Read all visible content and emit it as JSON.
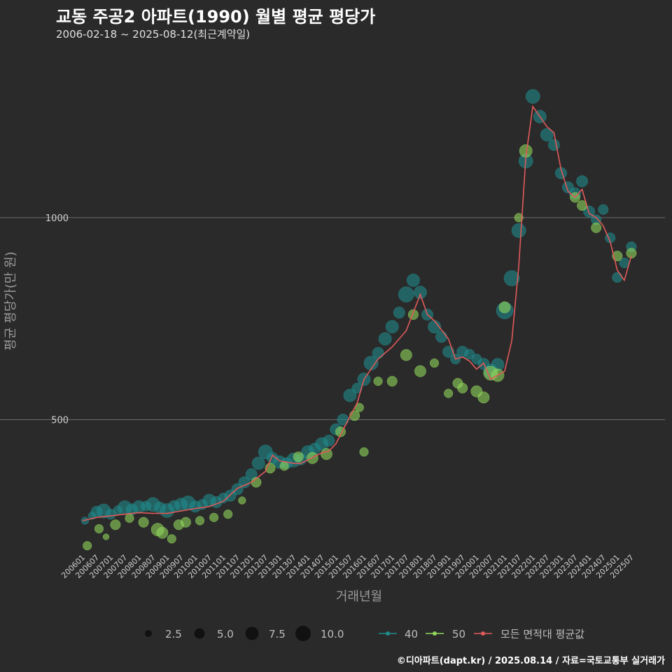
{
  "chart_data": {
    "type": "scatter",
    "title": "교동 주공2 아파트(1990) 월별 평균 평당가",
    "subtitle": "2006-02-18 ~ 2025-08-12(최근계약일)",
    "xlabel": "거래년월",
    "ylabel": "평균 평당가(만 원)",
    "caption": "©디아파트(dapt.kr) / 2025.08.14 / 자료=국토교통부 실거래가",
    "x_range": [
      "200601",
      "202510"
    ],
    "ylim": [
      170,
      1400
    ],
    "y_ticks": [
      500,
      1000
    ],
    "y_tick_labels": [
      "500",
      "1000"
    ],
    "x_tick_labels": [
      "200601",
      "200607",
      "200701",
      "200707",
      "200801",
      "200807",
      "200901",
      "200907",
      "201001",
      "201007",
      "201101",
      "201107",
      "201201",
      "201207",
      "201301",
      "201307",
      "201401",
      "201407",
      "201501",
      "201507",
      "201601",
      "201607",
      "201701",
      "201707",
      "201801",
      "201807",
      "201901",
      "201907",
      "202001",
      "202007",
      "202101",
      "202107",
      "202201",
      "202207",
      "202301",
      "202307",
      "202401",
      "202407",
      "202501",
      "202507"
    ],
    "size_legend": {
      "values": [
        2.5,
        5.0,
        7.5,
        10.0
      ],
      "labels": [
        "2.5",
        "5.0",
        "7.5",
        "10.0"
      ]
    },
    "colors": {
      "s40": "#1f8a8a",
      "s50": "#8fd65a",
      "avg": "#e05a5a",
      "grid": "#6a6a6a",
      "bg": "#2b2a2b"
    },
    "series": [
      {
        "name": "40",
        "points": [
          [
            "200602",
            250,
            3
          ],
          [
            "200605",
            262,
            3
          ],
          [
            "200607",
            272,
            6
          ],
          [
            "200610",
            274,
            8
          ],
          [
            "200701",
            266,
            5
          ],
          [
            "200704",
            276,
            4
          ],
          [
            "200707",
            282,
            8
          ],
          [
            "200710",
            278,
            6
          ],
          [
            "200801",
            284,
            7
          ],
          [
            "200804",
            286,
            5
          ],
          [
            "200807",
            290,
            8
          ],
          [
            "200810",
            282,
            6
          ],
          [
            "200901",
            275,
            8
          ],
          [
            "200904",
            286,
            6
          ],
          [
            "200907",
            290,
            7
          ],
          [
            "200910",
            294,
            8
          ],
          [
            "201001",
            285,
            6
          ],
          [
            "201004",
            290,
            5
          ],
          [
            "201007",
            300,
            7
          ],
          [
            "201010",
            296,
            6
          ],
          [
            "201101",
            306,
            5
          ],
          [
            "201104",
            312,
            6
          ],
          [
            "201107",
            328,
            6
          ],
          [
            "201110",
            345,
            6
          ],
          [
            "201201",
            365,
            6
          ],
          [
            "201204",
            392,
            7
          ],
          [
            "201207",
            420,
            8
          ],
          [
            "201210",
            405,
            6
          ],
          [
            "201301",
            395,
            7
          ],
          [
            "201304",
            392,
            6
          ],
          [
            "201307",
            400,
            8
          ],
          [
            "201310",
            402,
            6
          ],
          [
            "201401",
            420,
            7
          ],
          [
            "201404",
            428,
            6
          ],
          [
            "201407",
            440,
            7
          ],
          [
            "201410",
            448,
            6
          ],
          [
            "201501",
            476,
            6
          ],
          [
            "201504",
            500,
            6
          ],
          [
            "201507",
            560,
            7
          ],
          [
            "201510",
            578,
            5
          ],
          [
            "201601",
            600,
            7
          ],
          [
            "201604",
            640,
            8
          ],
          [
            "201607",
            665,
            6
          ],
          [
            "201610",
            700,
            7
          ],
          [
            "201701",
            730,
            7
          ],
          [
            "201704",
            765,
            6
          ],
          [
            "201707",
            810,
            9
          ],
          [
            "201710",
            845,
            7
          ],
          [
            "201801",
            815,
            7
          ],
          [
            "201804",
            760,
            6
          ],
          [
            "201807",
            730,
            7
          ],
          [
            "201810",
            705,
            6
          ],
          [
            "201901",
            668,
            6
          ],
          [
            "201904",
            650,
            5
          ],
          [
            "201907",
            668,
            6
          ],
          [
            "201910",
            662,
            5
          ],
          [
            "202001",
            650,
            5
          ],
          [
            "202004",
            638,
            6
          ],
          [
            "202007",
            620,
            8
          ],
          [
            "202010",
            636,
            7
          ],
          [
            "202101",
            770,
            10
          ],
          [
            "202104",
            850,
            9
          ],
          [
            "202107",
            968,
            8
          ],
          [
            "202110",
            1140,
            8
          ],
          [
            "202201",
            1300,
            8
          ],
          [
            "202204",
            1250,
            7
          ],
          [
            "202207",
            1205,
            7
          ],
          [
            "202210",
            1180,
            6
          ],
          [
            "202301",
            1110,
            6
          ],
          [
            "202304",
            1075,
            6
          ],
          [
            "202307",
            1060,
            6
          ],
          [
            "202310",
            1090,
            6
          ],
          [
            "202401",
            1015,
            6
          ],
          [
            "202404",
            995,
            5
          ],
          [
            "202407",
            1020,
            5
          ],
          [
            "202410",
            950,
            5
          ],
          [
            "202501",
            852,
            5
          ],
          [
            "202504",
            888,
            5
          ],
          [
            "202507",
            928,
            5
          ]
        ]
      },
      {
        "name": "50",
        "points": [
          [
            "200603",
            188,
            4
          ],
          [
            "200608",
            230,
            4
          ],
          [
            "200611",
            210,
            2
          ],
          [
            "200703",
            240,
            5
          ],
          [
            "200709",
            256,
            4
          ],
          [
            "200803",
            246,
            5
          ],
          [
            "200809",
            228,
            7
          ],
          [
            "200811",
            220,
            6
          ],
          [
            "200903",
            205,
            4
          ],
          [
            "200906",
            240,
            5
          ],
          [
            "200909",
            246,
            5
          ],
          [
            "201003",
            250,
            4
          ],
          [
            "201009",
            258,
            4
          ],
          [
            "201103",
            266,
            4
          ],
          [
            "201109",
            300,
            3
          ],
          [
            "201203",
            345,
            5
          ],
          [
            "201209",
            380,
            5
          ],
          [
            "201303",
            385,
            4
          ],
          [
            "201309",
            408,
            5
          ],
          [
            "201403",
            405,
            6
          ],
          [
            "201409",
            415,
            6
          ],
          [
            "201503",
            470,
            5
          ],
          [
            "201509",
            510,
            5
          ],
          [
            "201511",
            530,
            4
          ],
          [
            "201601",
            420,
            4
          ],
          [
            "201607",
            595,
            4
          ],
          [
            "201701",
            595,
            5
          ],
          [
            "201707",
            660,
            6
          ],
          [
            "201710",
            760,
            5
          ],
          [
            "201801",
            620,
            6
          ],
          [
            "201807",
            640,
            4
          ],
          [
            "201901",
            565,
            4
          ],
          [
            "201905",
            590,
            5
          ],
          [
            "201907",
            578,
            5
          ],
          [
            "202001",
            570,
            6
          ],
          [
            "202004",
            555,
            6
          ],
          [
            "202007",
            615,
            8
          ],
          [
            "202010",
            610,
            7
          ],
          [
            "202101",
            778,
            6
          ],
          [
            "202107",
            1000,
            4
          ],
          [
            "202110",
            1165,
            7
          ],
          [
            "202307",
            1050,
            5
          ],
          [
            "202310",
            1030,
            5
          ],
          [
            "202404",
            975,
            5
          ],
          [
            "202501",
            905,
            5
          ],
          [
            "202507",
            912,
            5
          ]
        ]
      }
    ],
    "average_line": {
      "name": "모든 면적대 평균값",
      "values": [
        [
          "200601",
          250
        ],
        [
          "200607",
          258
        ],
        [
          "200701",
          262
        ],
        [
          "200707",
          266
        ],
        [
          "200801",
          270
        ],
        [
          "200807",
          268
        ],
        [
          "200901",
          268
        ],
        [
          "200907",
          274
        ],
        [
          "201001",
          280
        ],
        [
          "201007",
          285
        ],
        [
          "201101",
          298
        ],
        [
          "201107",
          330
        ],
        [
          "201201",
          345
        ],
        [
          "201207",
          372
        ],
        [
          "201210",
          412
        ],
        [
          "201301",
          398
        ],
        [
          "201307",
          392
        ],
        [
          "201310",
          392
        ],
        [
          "201401",
          400
        ],
        [
          "201407",
          418
        ],
        [
          "201410",
          422
        ],
        [
          "201501",
          440
        ],
        [
          "201507",
          508
        ],
        [
          "201510",
          540
        ],
        [
          "201601",
          600
        ],
        [
          "201607",
          650
        ],
        [
          "201701",
          680
        ],
        [
          "201707",
          720
        ],
        [
          "201801",
          810
        ],
        [
          "201804",
          760
        ],
        [
          "201807",
          745
        ],
        [
          "201901",
          700
        ],
        [
          "201904",
          650
        ],
        [
          "201907",
          655
        ],
        [
          "201910",
          645
        ],
        [
          "202001",
          625
        ],
        [
          "202004",
          640
        ],
        [
          "202007",
          600
        ],
        [
          "202101",
          620
        ],
        [
          "202104",
          695
        ],
        [
          "202107",
          880
        ],
        [
          "202110",
          1150
        ],
        [
          "202201",
          1275
        ],
        [
          "202204",
          1250
        ],
        [
          "202207",
          1225
        ],
        [
          "202210",
          1210
        ],
        [
          "202301",
          1120
        ],
        [
          "202304",
          1065
        ],
        [
          "202307",
          1050
        ],
        [
          "202310",
          1070
        ],
        [
          "202401",
          1010
        ],
        [
          "202404",
          1000
        ],
        [
          "202407",
          980
        ],
        [
          "202410",
          940
        ],
        [
          "202501",
          870
        ],
        [
          "202504",
          845
        ],
        [
          "202507",
          905
        ]
      ]
    }
  }
}
